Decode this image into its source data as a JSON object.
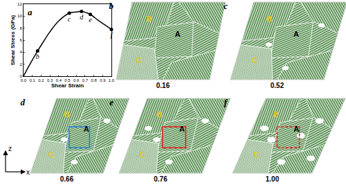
{
  "chart_data": {
    "type": "line",
    "panel_label": "a",
    "xlabel": "Shear Strain",
    "ylabel": "Shear Stress (GPa)",
    "x": [
      0,
      0.05,
      0.1,
      0.16,
      0.22,
      0.3,
      0.4,
      0.52,
      0.6,
      0.66,
      0.72,
      0.76,
      0.85,
      0.92,
      1.0
    ],
    "values": [
      0,
      1.4,
      2.7,
      4.2,
      5.6,
      7.4,
      9.2,
      10.5,
      10.7,
      10.8,
      10.55,
      10.3,
      9.3,
      8.6,
      7.8
    ],
    "color": "#000000",
    "marker": "circle",
    "grid": false,
    "points": [
      {
        "x": 0.16,
        "y": 4.2,
        "label": "b"
      },
      {
        "x": 0.52,
        "y": 10.5,
        "label": "c"
      },
      {
        "x": 0.66,
        "y": 10.8,
        "label": "d"
      },
      {
        "x": 0.76,
        "y": 10.3,
        "label": "e"
      },
      {
        "x": 1.0,
        "y": 7.8,
        "label": "f"
      }
    ],
    "xlim": [
      0,
      1
    ],
    "xticks": [
      {
        "value": 0,
        "label": "0.0"
      },
      {
        "value": 0.1,
        "label": "0.1"
      },
      {
        "value": 0.2,
        "label": "0.2"
      },
      {
        "value": 0.3,
        "label": "0.3"
      },
      {
        "value": 0.4,
        "label": "0.4"
      },
      {
        "value": 0.5,
        "label": "0.5"
      },
      {
        "value": 0.6,
        "label": "0.6"
      },
      {
        "value": 0.7,
        "label": "0.7"
      },
      {
        "value": 0.8,
        "label": "0.8"
      },
      {
        "value": 0.9,
        "label": "0.9"
      },
      {
        "value": 1.0,
        "label": "1.0"
      }
    ],
    "ylim": [
      0,
      12
    ],
    "yticks": [
      0,
      2,
      4,
      6,
      8,
      10,
      12
    ]
  },
  "snapshots": [
    {
      "panel": "b",
      "strain": 0.16,
      "strain_label": "0.16",
      "highlight": null,
      "grains": [
        {
          "text": "B",
          "color": "#e8c619"
        },
        {
          "text": "A",
          "color": "#000000"
        },
        {
          "text": "C",
          "color": "#e8c619"
        }
      ]
    },
    {
      "panel": "c",
      "strain": 0.52,
      "strain_label": "0.52",
      "highlight": null,
      "grains": [
        {
          "text": "B",
          "color": "#e8c619"
        },
        {
          "text": "A",
          "color": "#000000"
        },
        {
          "text": "C",
          "color": "#e8c619"
        }
      ]
    },
    {
      "panel": "d",
      "strain": 0.66,
      "strain_label": "0.66",
      "highlight": {
        "color": "#2a7fd4",
        "line_style": "solid"
      },
      "grains": [
        {
          "text": "B",
          "color": "#e8c619"
        },
        {
          "text": "A",
          "color": "#000000"
        },
        {
          "text": "C",
          "color": "#e8c619"
        }
      ]
    },
    {
      "panel": "e",
      "strain": 0.76,
      "strain_label": "0.76",
      "highlight": {
        "color": "#e02020",
        "line_style": "solid"
      },
      "grains": [
        {
          "text": "B",
          "color": "#e8c619"
        },
        {
          "text": "A",
          "color": "#000000"
        },
        {
          "text": "C",
          "color": "#e8c619"
        }
      ]
    },
    {
      "panel": "f",
      "strain": 1.0,
      "strain_label": "1.00",
      "highlight": {
        "color": "#e02020",
        "line_style": "dashed"
      },
      "grains": [
        {
          "text": "B",
          "color": "#e8c619"
        },
        {
          "text": "A",
          "color": "#000000"
        },
        {
          "text": "C",
          "color": "#e8c619"
        }
      ]
    }
  ],
  "axes_indicator": {
    "vertical": "z",
    "horizontal": "x"
  }
}
